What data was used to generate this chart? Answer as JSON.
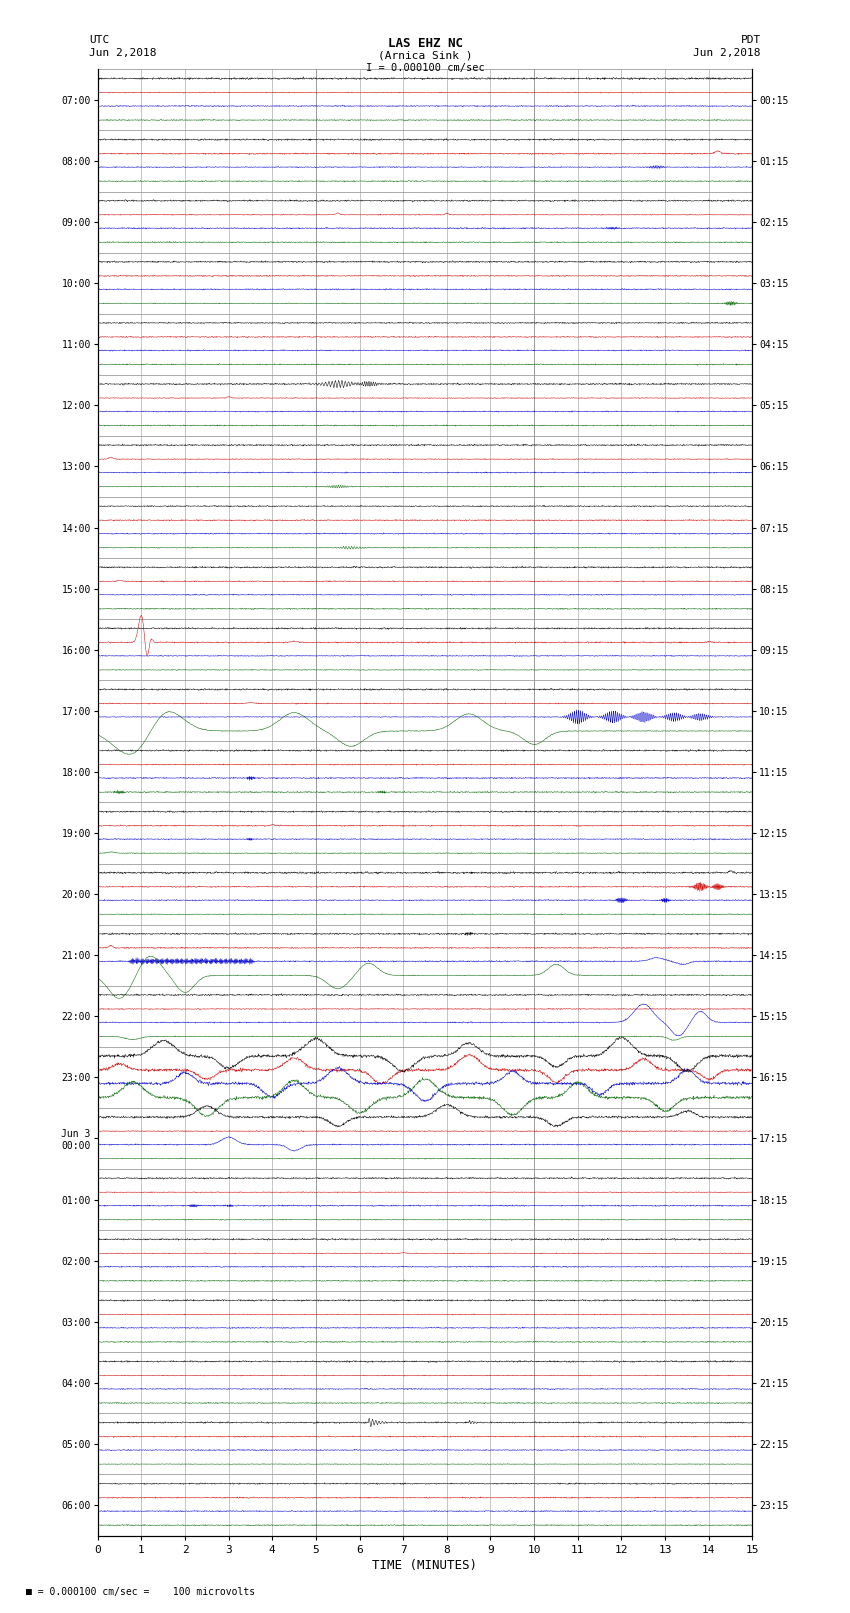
{
  "title_line1": "LAS EHZ NC",
  "title_line2": "(Arnica Sink )",
  "title_line3": "I = 0.000100 cm/sec",
  "left_label_top": "UTC",
  "left_label_date": "Jun 2,2018",
  "right_label_top": "PDT",
  "right_label_date": "Jun 2,2018",
  "xlabel": "TIME (MINUTES)",
  "footnote": "= 0.000100 cm/sec =    100 microvolts",
  "bg_color": "#ffffff",
  "trace_color_black": "#000000",
  "trace_color_red": "#cc0000",
  "trace_color_blue": "#0000cc",
  "trace_color_green": "#006600",
  "grid_color": "#999999",
  "num_rows": 24,
  "minutes_per_row": 15,
  "left_tick_labels": [
    "07:00",
    "08:00",
    "09:00",
    "10:00",
    "11:00",
    "12:00",
    "13:00",
    "14:00",
    "15:00",
    "16:00",
    "17:00",
    "18:00",
    "19:00",
    "20:00",
    "21:00",
    "22:00",
    "23:00",
    "Jun 3\n00:00",
    "01:00",
    "02:00",
    "03:00",
    "04:00",
    "05:00",
    "06:00"
  ],
  "right_tick_labels": [
    "00:15",
    "01:15",
    "02:15",
    "03:15",
    "04:15",
    "05:15",
    "06:15",
    "07:15",
    "08:15",
    "09:15",
    "10:15",
    "11:15",
    "12:15",
    "13:15",
    "14:15",
    "15:15",
    "16:15",
    "17:15",
    "18:15",
    "19:15",
    "20:15",
    "21:15",
    "22:15",
    "23:15"
  ],
  "x_tick_labels": [
    "0",
    "1",
    "2",
    "3",
    "4",
    "5",
    "6",
    "7",
    "8",
    "9",
    "10",
    "11",
    "12",
    "13",
    "14",
    "15"
  ]
}
